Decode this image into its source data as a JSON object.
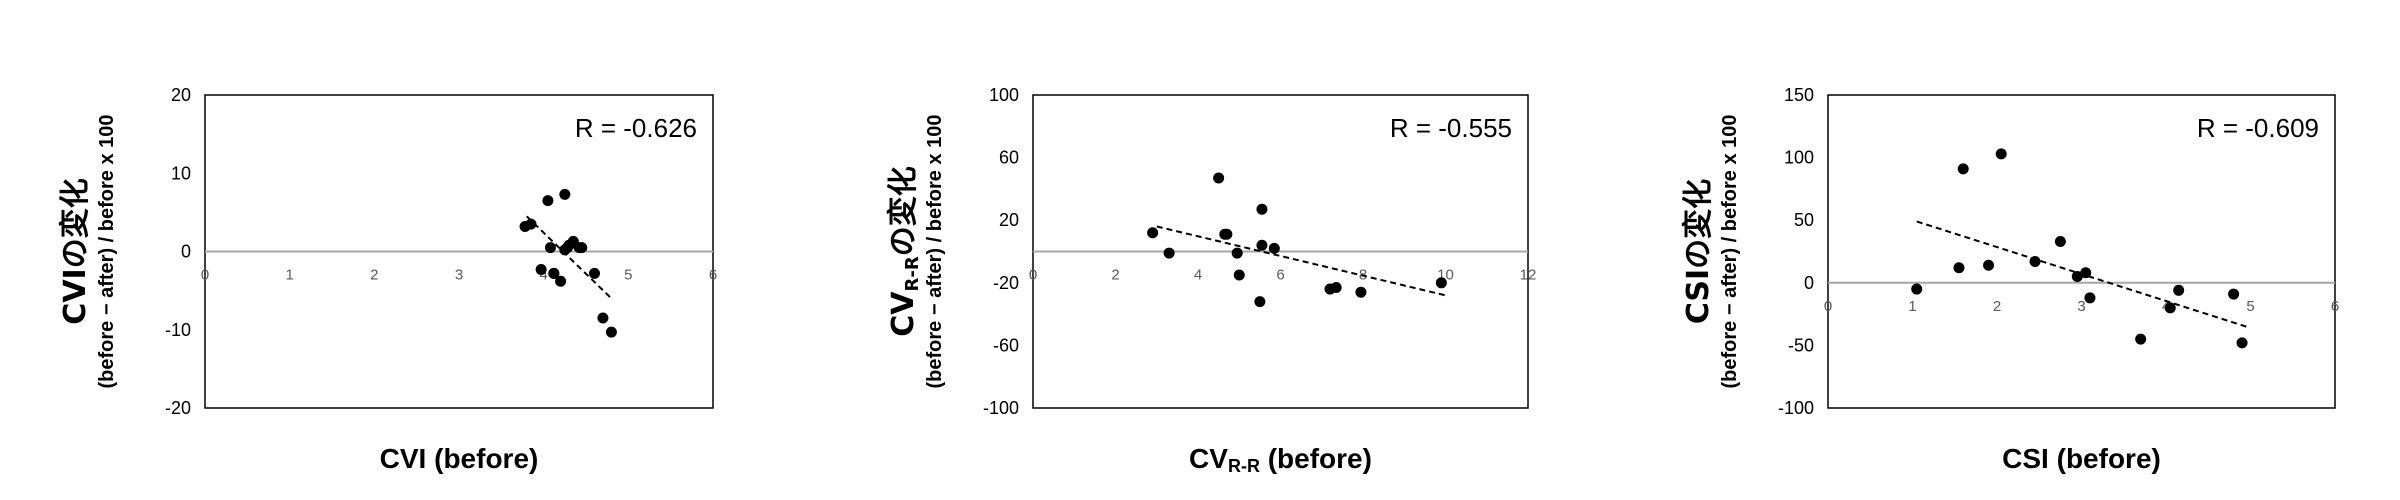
{
  "chart_data": [
    {
      "type": "scatter",
      "ylabel_main": "CVIの変化",
      "ylabel_sub": "(before − after) / before x 100",
      "xlabel_main": "CVI",
      "xlabel_sub": "",
      "xlabel_suffix": " (before)",
      "xlim": [
        0,
        6
      ],
      "ylim": [
        -20,
        20
      ],
      "xticks": [
        "0",
        "1",
        "2",
        "3",
        "4",
        "5",
        "6"
      ],
      "yticks": [
        "20",
        "10",
        "0",
        "-10",
        "-20"
      ],
      "annotation": "R = -0.626",
      "trend": {
        "x1": 3.8,
        "y1": 4.5,
        "x2": 4.8,
        "y2": -6
      },
      "x": [
        3.78,
        3.85,
        3.97,
        4.05,
        4.08,
        4.12,
        4.12,
        4.2,
        4.25,
        4.25,
        4.28,
        4.3,
        4.35,
        4.42,
        4.45,
        4.6,
        4.7,
        4.8
      ],
      "y": [
        3.2,
        3.5,
        -2.3,
        6.5,
        0.5,
        -2.8,
        -2.8,
        -3.8,
        7.3,
        0.2,
        0.5,
        0.8,
        1.3,
        0.5,
        0.5,
        -2.8,
        -8.5,
        -10.3
      ]
    },
    {
      "type": "scatter",
      "ylabel_main": "CV",
      "ylabel_main_sub": "R-R",
      "ylabel_main_suffix": "の変化",
      "ylabel_sub": "(before − after) / before x 100",
      "xlabel_main": "CV",
      "xlabel_sub": "R-R",
      "xlabel_suffix": " (before)",
      "xlim": [
        0,
        12
      ],
      "ylim": [
        -100,
        100
      ],
      "xticks": [
        "0",
        "2",
        "4",
        "6",
        "8",
        "10",
        "12"
      ],
      "yticks": [
        "100",
        "60",
        "20",
        "-20",
        "-60",
        "-100"
      ],
      "annotation": "R = -0.555",
      "trend": {
        "x1": 3,
        "y1": 16,
        "x2": 10,
        "y2": -28
      },
      "x": [
        2.9,
        3.3,
        4.5,
        4.65,
        4.7,
        4.95,
        5.0,
        5.5,
        5.55,
        5.55,
        5.85,
        7.2,
        7.35,
        7.95,
        9.9
      ],
      "y": [
        12,
        -1,
        47,
        11,
        11,
        -1,
        -15,
        -32,
        27,
        4,
        2,
        -24,
        -23,
        -26,
        -20
      ]
    },
    {
      "type": "scatter",
      "ylabel_main": "CSIの変化",
      "ylabel_sub": "(before − after) / before x 100",
      "xlabel_main": "CSI",
      "xlabel_sub": "",
      "xlabel_suffix": " (before)",
      "xlim": [
        0,
        6
      ],
      "ylim": [
        -100,
        150
      ],
      "xticks": [
        "0",
        "1",
        "2",
        "3",
        "4",
        "5",
        "6"
      ],
      "yticks": [
        "150",
        "100",
        "50",
        "0",
        "-50",
        "-100"
      ],
      "annotation": "R = -0.609",
      "trend": {
        "x1": 1.05,
        "y1": 49,
        "x2": 4.95,
        "y2": -35
      },
      "x": [
        1.05,
        1.55,
        1.6,
        1.9,
        2.05,
        2.45,
        2.75,
        2.95,
        3.05,
        3.1,
        3.7,
        4.05,
        4.15,
        4.8,
        4.9
      ],
      "y": [
        -5,
        12,
        91,
        14,
        103,
        17,
        33,
        5,
        8,
        -12,
        -45,
        -20,
        -6,
        -9,
        -48
      ]
    }
  ]
}
